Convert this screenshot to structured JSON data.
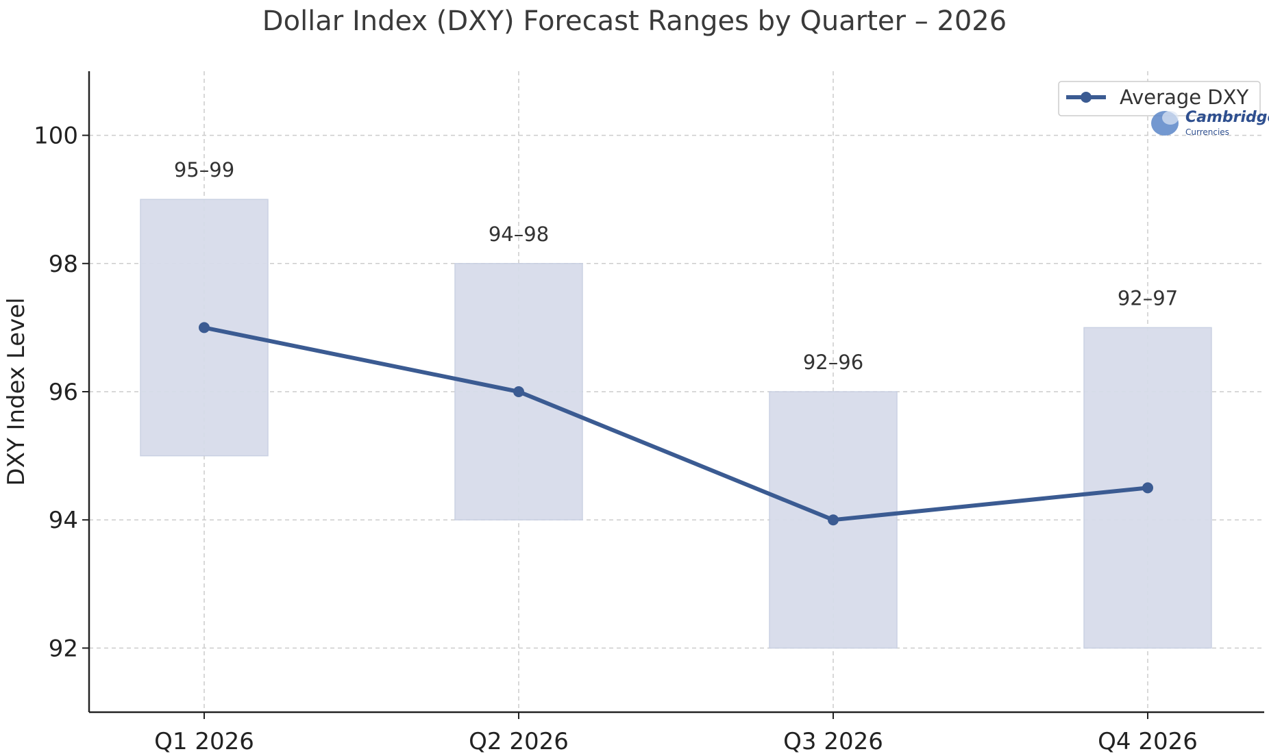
{
  "chart_data": {
    "type": "line",
    "title": "Dollar Index (DXY) Forecast Ranges by Quarter – 2026",
    "xlabel": "",
    "ylabel": "DXY Index Level",
    "categories": [
      "Q1 2026",
      "Q2 2026",
      "Q3 2026",
      "Q4 2026"
    ],
    "series": [
      {
        "name": "Average DXY",
        "values": [
          97,
          96,
          94,
          94.5
        ],
        "color": "#3b5b92"
      }
    ],
    "ranges": [
      {
        "low": 95,
        "high": 99,
        "label": "95–99"
      },
      {
        "low": 94,
        "high": 98,
        "label": "94–98"
      },
      {
        "low": 92,
        "high": 96,
        "label": "92–96"
      },
      {
        "low": 92,
        "high": 97,
        "label": "92–97"
      }
    ],
    "range_color": "#d7dcea",
    "ylim": [
      91,
      101
    ],
    "yticks": [
      92,
      94,
      96,
      98,
      100
    ],
    "grid": true,
    "legend_position": "top-right"
  },
  "logo": {
    "name": "Cambridge",
    "subtitle": "Currencies"
  }
}
